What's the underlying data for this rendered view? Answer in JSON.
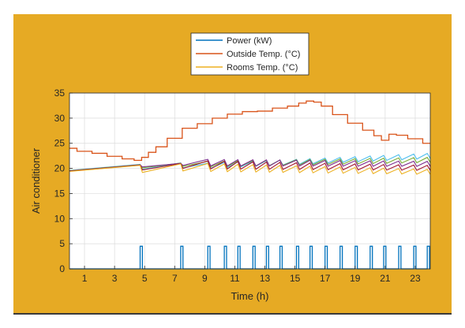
{
  "chart_data": {
    "type": "line",
    "title": "",
    "xlabel": "Time (h)",
    "ylabel": "Air conditioner",
    "xlim": [
      0,
      24
    ],
    "ylim": [
      0,
      35
    ],
    "xticks": [
      1,
      3,
      5,
      7,
      9,
      11,
      13,
      15,
      17,
      19,
      21,
      23
    ],
    "yticks": [
      0,
      5,
      10,
      15,
      20,
      25,
      30,
      35
    ],
    "grid": true,
    "legend_position": "top-center",
    "legend": [
      {
        "name": "Power (kW)",
        "color": "#0072bd"
      },
      {
        "name": "Outside Temp. (°C)",
        "color": "#d95319"
      },
      {
        "name": "Rooms Temp. (°C)",
        "color": "#edb120"
      }
    ],
    "outside_temp": {
      "name": "Outside Temp. (°C)",
      "color": "#d95319",
      "x": [
        0,
        1,
        2,
        3,
        4,
        4.6,
        5,
        5.5,
        6,
        7,
        8,
        9,
        10,
        11,
        12,
        13,
        14,
        15,
        15.5,
        16,
        16.5,
        17,
        18,
        19,
        20,
        20.5,
        21,
        21.5,
        22,
        23,
        24
      ],
      "y": [
        24,
        23.4,
        23,
        22.4,
        21.9,
        21.6,
        22.2,
        23.2,
        24.3,
        26,
        28,
        28.9,
        30,
        30.8,
        31.3,
        31.4,
        32,
        32.4,
        33,
        33.4,
        33.2,
        32.4,
        30.7,
        29,
        27.6,
        26.5,
        25.6,
        26.8,
        26.6,
        25.9,
        25
      ]
    },
    "power_pulses": {
      "name": "Power (kW)",
      "color": "#0072bd",
      "baseline": 0,
      "height": 4.5,
      "width_h": 0.15,
      "starts": [
        4.7,
        7.4,
        9.2,
        10.3,
        11.2,
        12.2,
        13.1,
        14.0,
        15.1,
        16.0,
        17.0,
        18.0,
        19.0,
        20.0,
        20.9,
        21.9,
        22.9,
        23.8
      ]
    },
    "room_temps": {
      "name": "Rooms Temp. (°C)",
      "colors": [
        "#4dbeee",
        "#77ac30",
        "#7e2f8e",
        "#a2142f",
        "#edb120"
      ],
      "start_value": 19.6,
      "peak_at_4_7": 20.8,
      "sawtooth_upper": [
        21.0,
        21.4,
        21.8,
        21.5,
        21.0
      ],
      "sawtooth_lower": [
        20.0,
        20.3,
        20.5,
        19.9,
        19.4
      ],
      "end_values": [
        23.0,
        22.2,
        21.4,
        20.6,
        19.8
      ]
    }
  }
}
